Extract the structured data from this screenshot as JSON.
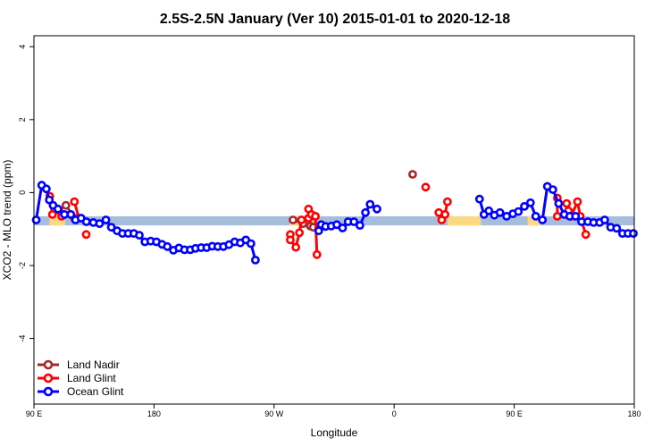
{
  "chart_data": {
    "type": "line",
    "title": "2.5S-2.5N January (Ver 10)   2015-01-01 to 2020-12-18",
    "xlabel": "Longitude",
    "ylabel": "XCO2 - MLO trend (ppm)",
    "xlim": [
      -90,
      180
    ],
    "ylim": [
      -5.8,
      4.3
    ],
    "x_ticks": [
      {
        "value": -90,
        "label": "90 E"
      },
      {
        "value": -36,
        "label": "180"
      },
      {
        "value": 18,
        "label": "90 W"
      },
      {
        "value": 72,
        "label": "0"
      },
      {
        "value": 126,
        "label": "90 E"
      },
      {
        "value": 180,
        "label": "180"
      }
    ],
    "y_ticks": [
      -4,
      -2,
      0,
      2,
      4
    ],
    "reference_band": {
      "ymin": -0.9,
      "ymax": -0.65,
      "color": "#A6BDDB",
      "highlight_color": "#FDD882",
      "highlight_ranges": [
        [
          -83,
          -76
        ],
        [
          25,
          36
        ],
        [
          96,
          111
        ],
        [
          132,
          138
        ]
      ]
    },
    "legend_position": "bottom-left",
    "series": [
      {
        "name": "Land Nadir",
        "color": "#A52A2A",
        "segments": [
          [
            [
              -75.6,
              -0.35
            ],
            [
              -71.8,
              -0.7
            ]
          ],
          [
            [
              26.5,
              -0.75
            ],
            [
              31,
              -0.85
            ]
          ],
          [
            [
              34.3,
              -0.92
            ],
            [
              35.6,
              -0.95
            ]
          ],
          [
            [
              80.3,
              0.5
            ]
          ]
        ]
      },
      {
        "name": "Land Glint",
        "color": "#FF0000",
        "segments": [
          [
            [
              -82.9,
              -0.1
            ],
            [
              -81.7,
              -0.6
            ],
            [
              -78.8,
              -0.48
            ],
            [
              -77.5,
              -0.65
            ]
          ],
          [
            [
              -71.8,
              -0.25
            ],
            [
              -69.8,
              -0.7
            ]
          ],
          [
            [
              -66.5,
              -1.15
            ]
          ],
          [
            [
              25.3,
              -1.15
            ],
            [
              25.3,
              -1.3
            ],
            [
              27.8,
              -1.5
            ],
            [
              29.4,
              -1.1
            ],
            [
              30.3,
              -0.75
            ]
          ],
          [
            [
              33.5,
              -0.7
            ],
            [
              33.5,
              -0.45
            ],
            [
              34.8,
              -0.6
            ],
            [
              36.6,
              -0.65
            ],
            [
              37.3,
              -1.7
            ]
          ],
          [
            [
              86.2,
              0.15
            ]
          ],
          [
            [
              92.1,
              -0.55
            ],
            [
              93.4,
              -0.75
            ],
            [
              94.9,
              -0.6
            ],
            [
              96,
              -0.25
            ]
          ],
          [
            [
              145.4,
              -0.15
            ],
            [
              145.4,
              -0.65
            ]
          ],
          [
            [
              149.6,
              -0.3
            ],
            [
              150.4,
              -0.5
            ],
            [
              151.6,
              -0.65
            ],
            [
              154.5,
              -0.25
            ],
            [
              155.7,
              -0.65
            ],
            [
              158.2,
              -1.15
            ]
          ]
        ]
      },
      {
        "name": "Ocean Glint",
        "color": "#0000FF",
        "segments": [
          [
            [
              -89,
              -0.75
            ],
            [
              -86.5,
              0.2
            ],
            [
              -84.4,
              0.1
            ],
            [
              -83.1,
              -0.2
            ],
            [
              -81.4,
              -0.35
            ],
            [
              -79.2,
              -0.45
            ],
            [
              -76.3,
              -0.6
            ],
            [
              -73.4,
              -0.6
            ],
            [
              -71.3,
              -0.75
            ],
            [
              -68.8,
              -0.7
            ],
            [
              -66.4,
              -0.8
            ],
            [
              -63.3,
              -0.82
            ],
            [
              -60.5,
              -0.85
            ],
            [
              -57.6,
              -0.75
            ],
            [
              -55.2,
              -0.95
            ],
            [
              -52.6,
              -1.05
            ],
            [
              -50.2,
              -1.12
            ],
            [
              -47.6,
              -1.12
            ],
            [
              -45.1,
              -1.12
            ],
            [
              -42.6,
              -1.17
            ],
            [
              -40.1,
              -1.35
            ],
            [
              -37.5,
              -1.33
            ],
            [
              -34.9,
              -1.35
            ],
            [
              -32.4,
              -1.42
            ],
            [
              -30,
              -1.48
            ],
            [
              -27.3,
              -1.58
            ],
            [
              -24.8,
              -1.52
            ],
            [
              -22.3,
              -1.57
            ],
            [
              -19.7,
              -1.57
            ],
            [
              -17.3,
              -1.53
            ],
            [
              -14.8,
              -1.51
            ],
            [
              -12.3,
              -1.51
            ],
            [
              -9.8,
              -1.47
            ],
            [
              -7.3,
              -1.48
            ],
            [
              -4.8,
              -1.48
            ],
            [
              -2.3,
              -1.43
            ],
            [
              0.3,
              -1.35
            ],
            [
              2.8,
              -1.38
            ],
            [
              5.3,
              -1.3
            ],
            [
              7.6,
              -1.4
            ],
            [
              9.6,
              -1.85
            ]
          ],
          [
            [
              38.1,
              -1.05
            ],
            [
              39.2,
              -0.88
            ],
            [
              41.2,
              -0.93
            ],
            [
              43.7,
              -0.92
            ],
            [
              46.2,
              -0.88
            ],
            [
              48.8,
              -0.97
            ],
            [
              51.3,
              -0.8
            ],
            [
              53.9,
              -0.8
            ],
            [
              56.6,
              -0.9
            ],
            [
              59.1,
              -0.55
            ],
            [
              61.2,
              -0.32
            ],
            [
              64.3,
              -0.45
            ]
          ],
          [
            [
              110.4,
              -0.18
            ],
            [
              112.4,
              -0.6
            ],
            [
              114.6,
              -0.5
            ],
            [
              117.1,
              -0.62
            ],
            [
              119.6,
              -0.55
            ],
            [
              122.6,
              -0.65
            ],
            [
              125.4,
              -0.58
            ],
            [
              127.9,
              -0.52
            ],
            [
              130.6,
              -0.38
            ],
            [
              133.3,
              -0.28
            ],
            [
              135.7,
              -0.65
            ],
            [
              138.7,
              -0.75
            ],
            [
              140.9,
              0.17
            ],
            [
              143.4,
              0.08
            ],
            [
              146,
              -0.3
            ],
            [
              148.5,
              -0.6
            ],
            [
              151,
              -0.65
            ],
            [
              153.6,
              -0.65
            ],
            [
              156.3,
              -0.8
            ],
            [
              159.1,
              -0.8
            ],
            [
              161.7,
              -0.82
            ],
            [
              164.4,
              -0.82
            ],
            [
              166.7,
              -0.75
            ],
            [
              169.4,
              -0.95
            ],
            [
              172.1,
              -0.98
            ],
            [
              174.7,
              -1.12
            ],
            [
              177.2,
              -1.12
            ],
            [
              179.6,
              -1.12
            ]
          ]
        ]
      }
    ]
  }
}
